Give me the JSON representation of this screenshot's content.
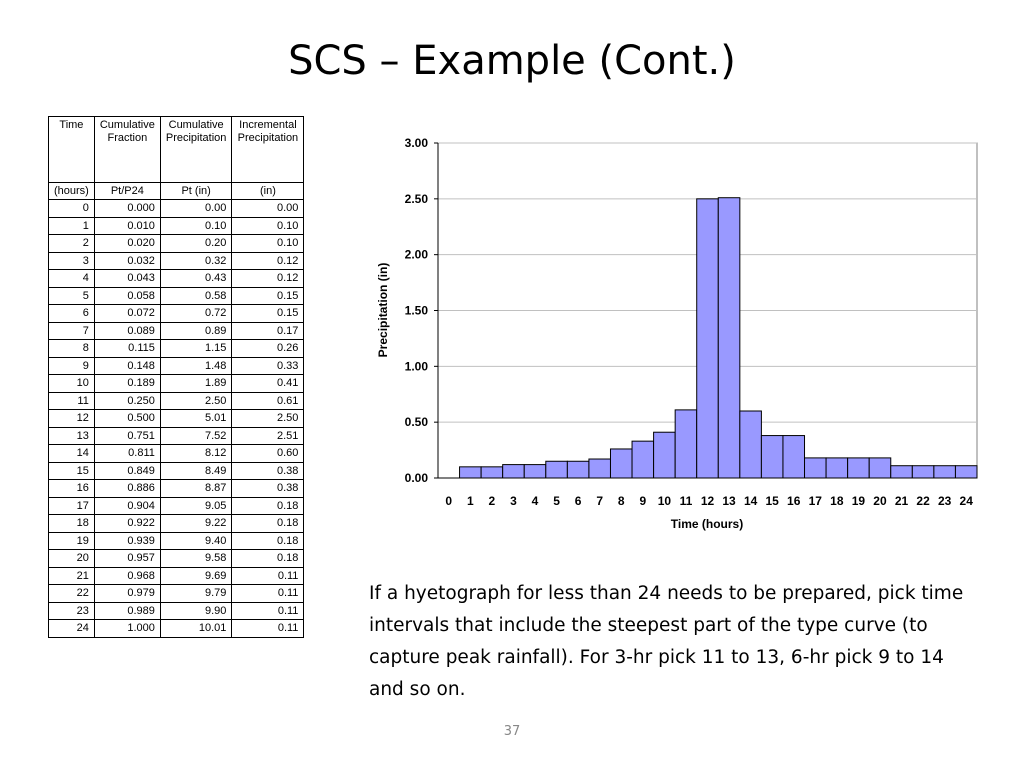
{
  "slide": {
    "title": "SCS – Example (Cont.)",
    "note": "If a hyetograph for less than 24 needs to be prepared, pick time intervals that include the steepest part of the type curve (to capture peak rainfall). For 3-hr pick 11 to 13, 6-hr pick 9 to 14 and so on.",
    "page_number": "37"
  },
  "table": {
    "headers": [
      "Time",
      "Cumulative Fraction",
      "Cumulative Precipitation",
      "Incremental Precipitation"
    ],
    "units": [
      "(hours)",
      "Pt/P24",
      "Pt (in)",
      "(in)"
    ],
    "rows": [
      [
        "0",
        "0.000",
        "0.00",
        "0.00"
      ],
      [
        "1",
        "0.010",
        "0.10",
        "0.10"
      ],
      [
        "2",
        "0.020",
        "0.20",
        "0.10"
      ],
      [
        "3",
        "0.032",
        "0.32",
        "0.12"
      ],
      [
        "4",
        "0.043",
        "0.43",
        "0.12"
      ],
      [
        "5",
        "0.058",
        "0.58",
        "0.15"
      ],
      [
        "6",
        "0.072",
        "0.72",
        "0.15"
      ],
      [
        "7",
        "0.089",
        "0.89",
        "0.17"
      ],
      [
        "8",
        "0.115",
        "1.15",
        "0.26"
      ],
      [
        "9",
        "0.148",
        "1.48",
        "0.33"
      ],
      [
        "10",
        "0.189",
        "1.89",
        "0.41"
      ],
      [
        "11",
        "0.250",
        "2.50",
        "0.61"
      ],
      [
        "12",
        "0.500",
        "5.01",
        "2.50"
      ],
      [
        "13",
        "0.751",
        "7.52",
        "2.51"
      ],
      [
        "14",
        "0.811",
        "8.12",
        "0.60"
      ],
      [
        "15",
        "0.849",
        "8.49",
        "0.38"
      ],
      [
        "16",
        "0.886",
        "8.87",
        "0.38"
      ],
      [
        "17",
        "0.904",
        "9.05",
        "0.18"
      ],
      [
        "18",
        "0.922",
        "9.22",
        "0.18"
      ],
      [
        "19",
        "0.939",
        "9.40",
        "0.18"
      ],
      [
        "20",
        "0.957",
        "9.58",
        "0.18"
      ],
      [
        "21",
        "0.968",
        "9.69",
        "0.11"
      ],
      [
        "22",
        "0.979",
        "9.79",
        "0.11"
      ],
      [
        "23",
        "0.989",
        "9.90",
        "0.11"
      ],
      [
        "24",
        "1.000",
        "10.01",
        "0.11"
      ]
    ]
  },
  "chart_data": {
    "type": "bar",
    "categories": [
      "0",
      "1",
      "2",
      "3",
      "4",
      "5",
      "6",
      "7",
      "8",
      "9",
      "10",
      "11",
      "12",
      "13",
      "14",
      "15",
      "16",
      "17",
      "18",
      "19",
      "20",
      "21",
      "22",
      "23",
      "24"
    ],
    "values": [
      0.0,
      0.1,
      0.1,
      0.12,
      0.12,
      0.15,
      0.15,
      0.17,
      0.26,
      0.33,
      0.41,
      0.61,
      2.5,
      2.51,
      0.6,
      0.38,
      0.38,
      0.18,
      0.18,
      0.18,
      0.18,
      0.11,
      0.11,
      0.11,
      0.11
    ],
    "title": "",
    "xlabel": "Time (hours)",
    "ylabel": "Precipitation (in)",
    "ylim": [
      0,
      3
    ],
    "yticks": [
      "0.00",
      "0.50",
      "1.00",
      "1.50",
      "2.00",
      "2.50",
      "3.00"
    ],
    "grid": true,
    "bar_color": "#9999ff",
    "bar_edge_color": "#000000"
  }
}
